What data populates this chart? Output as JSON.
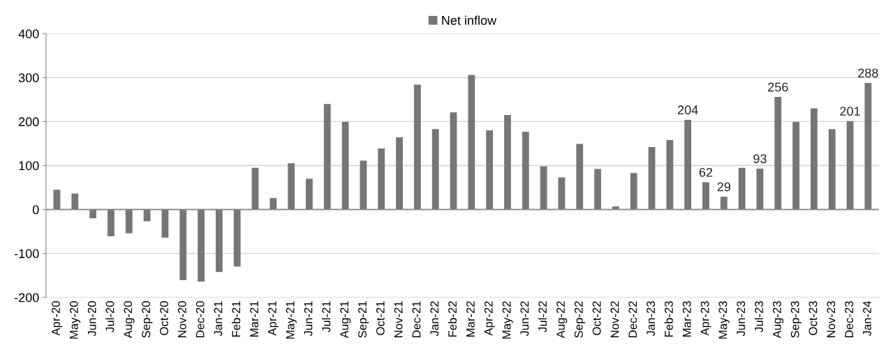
{
  "chart_data": {
    "type": "bar",
    "categories": [
      "Apr-20",
      "May-20",
      "Jun-20",
      "Jul-20",
      "Aug-20",
      "Sep-20",
      "Oct-20",
      "Nov-20",
      "Dec-20",
      "Jan-21",
      "Feb-21",
      "Mar-21",
      "Apr-21",
      "May-21",
      "Jun-21",
      "Jul-21",
      "Aug-21",
      "Sep-21",
      "Oct-21",
      "Nov-21",
      "Dec-21",
      "Jan-22",
      "Feb-22",
      "Mar-22",
      "Apr-22",
      "May-22",
      "Jun-22",
      "Jul-22",
      "Aug-22",
      "Sep-22",
      "Oct-22",
      "Nov-22",
      "Dec-22",
      "Jan-23",
      "Feb-23",
      "Mar-23",
      "Apr-23",
      "May-23",
      "Jun-23",
      "Jul-23",
      "Aug-23",
      "Sep-23",
      "Oct-23",
      "Nov-23",
      "Dec-23",
      "Jan-24"
    ],
    "series": [
      {
        "name": "Net inflow",
        "color": "#767676",
        "values": [
          45,
          36,
          -20,
          -61,
          -54,
          -27,
          -64,
          -161,
          -164,
          -142,
          -130,
          95,
          26,
          105,
          70,
          240,
          199,
          111,
          139,
          164,
          284,
          183,
          221,
          306,
          180,
          215,
          177,
          98,
          73,
          149,
          92,
          7,
          83,
          142,
          158,
          204,
          62,
          29,
          95,
          93,
          256,
          199,
          230,
          183,
          201,
          288
        ],
        "value_labels": [
          null,
          null,
          null,
          null,
          null,
          null,
          null,
          null,
          null,
          null,
          null,
          null,
          null,
          null,
          null,
          null,
          null,
          null,
          null,
          null,
          null,
          null,
          null,
          null,
          null,
          null,
          null,
          null,
          null,
          null,
          null,
          null,
          null,
          null,
          null,
          "204",
          "62",
          "29",
          null,
          "93",
          "256",
          null,
          null,
          null,
          "201",
          "288"
        ]
      }
    ],
    "ylim": [
      -200,
      400
    ],
    "yticks": [
      -200,
      -100,
      0,
      100,
      200,
      300,
      400
    ],
    "grid": "y",
    "legend": "top"
  }
}
